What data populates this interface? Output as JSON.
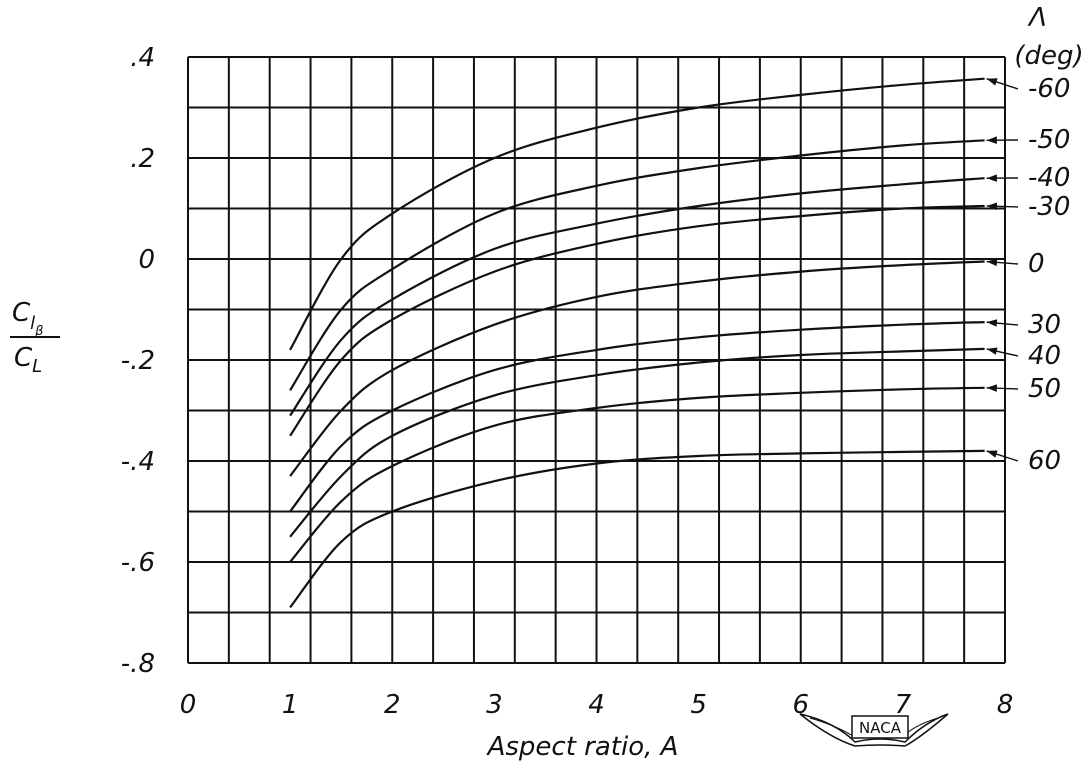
{
  "chart_data": {
    "type": "line",
    "xlabel": "Aspect ratio, A",
    "ylabel": {
      "num_main": "C",
      "num_sub": "l",
      "num_subsub": "β",
      "den_main": "C",
      "den_sub": "L"
    },
    "xlim": [
      0,
      8
    ],
    "ylim": [
      -0.8,
      0.4
    ],
    "x_ticks": [
      "0",
      "1",
      "2",
      "3",
      "4",
      "5",
      "6",
      "7",
      "8"
    ],
    "y_ticks": [
      ".4",
      ".2",
      "0",
      "-.2",
      "-.4",
      "-.6",
      "-.8"
    ],
    "grid": true,
    "legend_title": {
      "symbol": "Λ",
      "unit": "(deg)"
    },
    "series": [
      {
        "name": "-60",
        "x": [
          1,
          1.5,
          2,
          3,
          4,
          5,
          6,
          7,
          7.8
        ],
        "y": [
          -0.18,
          0.0,
          0.09,
          0.2,
          0.26,
          0.3,
          0.325,
          0.345,
          0.357
        ]
      },
      {
        "name": "-50",
        "x": [
          1,
          1.5,
          2,
          3,
          4,
          5,
          6,
          7,
          7.8
        ],
        "y": [
          -0.26,
          -0.1,
          -0.02,
          0.09,
          0.145,
          0.18,
          0.205,
          0.225,
          0.235
        ]
      },
      {
        "name": "-40",
        "x": [
          1,
          1.5,
          2,
          3,
          4,
          5,
          6,
          7,
          7.8
        ],
        "y": [
          -0.31,
          -0.16,
          -0.08,
          0.02,
          0.07,
          0.105,
          0.13,
          0.148,
          0.16
        ]
      },
      {
        "name": "-30",
        "x": [
          1,
          1.5,
          2,
          3,
          4,
          5,
          6,
          7,
          7.8
        ],
        "y": [
          -0.35,
          -0.2,
          -0.12,
          -0.025,
          0.03,
          0.065,
          0.085,
          0.1,
          0.105
        ]
      },
      {
        "name": "0",
        "x": [
          1,
          1.5,
          2,
          3,
          4,
          5,
          6,
          7,
          7.8
        ],
        "y": [
          -0.43,
          -0.3,
          -0.22,
          -0.13,
          -0.075,
          -0.045,
          -0.025,
          -0.012,
          -0.005
        ]
      },
      {
        "name": "30",
        "x": [
          1,
          1.5,
          2,
          3,
          4,
          5,
          6,
          7,
          7.8
        ],
        "y": [
          -0.5,
          -0.37,
          -0.3,
          -0.22,
          -0.18,
          -0.155,
          -0.14,
          -0.13,
          -0.125
        ]
      },
      {
        "name": "40",
        "x": [
          1,
          1.5,
          2,
          3,
          4,
          5,
          6,
          7,
          7.8
        ],
        "y": [
          -0.55,
          -0.43,
          -0.35,
          -0.27,
          -0.23,
          -0.205,
          -0.19,
          -0.183,
          -0.178
        ]
      },
      {
        "name": "50",
        "x": [
          1,
          1.5,
          2,
          3,
          4,
          5,
          6,
          7,
          7.8
        ],
        "y": [
          -0.6,
          -0.48,
          -0.41,
          -0.33,
          -0.295,
          -0.275,
          -0.265,
          -0.258,
          -0.255
        ]
      },
      {
        "name": "60",
        "x": [
          1,
          1.5,
          2,
          3,
          4,
          5,
          6,
          7,
          7.8
        ],
        "y": [
          -0.69,
          -0.56,
          -0.5,
          -0.44,
          -0.405,
          -0.39,
          -0.385,
          -0.382,
          -0.38
        ]
      }
    ]
  },
  "naca_logo": "NACA"
}
